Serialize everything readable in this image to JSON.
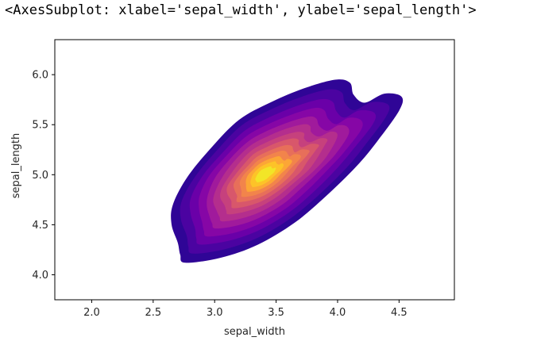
{
  "output": {
    "repr_text": "<AxesSubplot: xlabel='sepal_width', ylabel='sepal_length'>"
  },
  "chart_data": {
    "type": "kde-contour-filled",
    "xlabel": "sepal_width",
    "ylabel": "sepal_length",
    "xlim": [
      1.7,
      4.95
    ],
    "ylim": [
      3.75,
      6.35
    ],
    "xticks": [
      2.0,
      2.5,
      3.0,
      3.5,
      4.0,
      4.5
    ],
    "xtick_labels": [
      "2.0",
      "2.5",
      "3.0",
      "3.5",
      "4.0",
      "4.5"
    ],
    "yticks": [
      4.0,
      4.5,
      5.0,
      5.5,
      6.0
    ],
    "ytick_labels": [
      "4.0",
      "4.5",
      "5.0",
      "5.5",
      "6.0"
    ],
    "grid": false,
    "colormap": "plasma",
    "level_colors": [
      "#2f0596",
      "#4b03a1",
      "#6a00a8",
      "#8606a6",
      "#a01a9c",
      "#b42e8d",
      "#c6417d",
      "#d8576b",
      "#e76f5a",
      "#f2844b",
      "#fca636",
      "#fdc328",
      "#f2e527"
    ],
    "peak": {
      "x": 3.4,
      "y": 5.0
    },
    "outer_boundary": [
      [
        2.76,
        4.12
      ],
      [
        3.05,
        4.17
      ],
      [
        3.35,
        4.3
      ],
      [
        3.65,
        4.52
      ],
      [
        3.9,
        4.78
      ],
      [
        4.15,
        5.08
      ],
      [
        4.32,
        5.33
      ],
      [
        4.5,
        5.64
      ],
      [
        4.52,
        5.78
      ],
      [
        4.38,
        5.81
      ],
      [
        4.22,
        5.72
      ],
      [
        4.13,
        5.8
      ],
      [
        4.1,
        5.92
      ],
      [
        3.98,
        5.95
      ],
      [
        3.72,
        5.86
      ],
      [
        3.45,
        5.72
      ],
      [
        3.2,
        5.55
      ],
      [
        2.98,
        5.28
      ],
      [
        2.78,
        4.98
      ],
      [
        2.66,
        4.7
      ],
      [
        2.65,
        4.5
      ],
      [
        2.7,
        4.32
      ],
      [
        2.72,
        4.2
      ]
    ],
    "level_scale": [
      1.0,
      0.9,
      0.8,
      0.71,
      0.62,
      0.54,
      0.46,
      0.39,
      0.32,
      0.26,
      0.2,
      0.145,
      0.09
    ]
  }
}
